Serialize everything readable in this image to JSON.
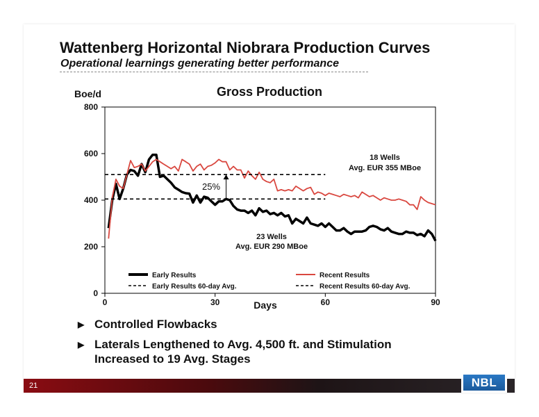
{
  "slide": {
    "title": "Wattenberg Horizontal Niobrara Production Curves",
    "subtitle": "Operational learnings generating better performance",
    "page_number": "21",
    "logo_text": "NBL"
  },
  "bullets": [
    "Controlled Flowbacks",
    "Laterals Lengthened to Avg. 4,500 ft. and Stimulation Increased to 19 Avg. Stages"
  ],
  "chart_data": {
    "type": "line",
    "title": "Gross Production",
    "ylabel": "Boe/d",
    "xlabel": "Days",
    "xlim": [
      0,
      90
    ],
    "ylim": [
      0,
      800
    ],
    "xticks": [
      "0",
      "30",
      "60",
      "90"
    ],
    "yticks": [
      "0",
      "200",
      "400",
      "600",
      "800"
    ],
    "grid": false,
    "legend_position": "bottom",
    "series": [
      {
        "name": "Early Results",
        "color": "#000000",
        "style": "solid",
        "x": [
          1,
          2,
          3,
          4,
          5,
          6,
          7,
          8,
          9,
          10,
          11,
          12,
          13,
          14,
          15,
          16,
          17,
          18,
          19,
          20,
          21,
          22,
          23,
          24,
          25,
          26,
          27,
          28,
          29,
          30,
          31,
          32,
          33,
          34,
          35,
          36,
          37,
          38,
          39,
          40,
          41,
          42,
          43,
          44,
          45,
          46,
          47,
          48,
          49,
          50,
          51,
          52,
          53,
          54,
          55,
          56,
          57,
          58,
          59,
          60,
          61,
          62,
          63,
          64,
          65,
          66,
          67,
          68,
          69,
          70,
          71,
          72,
          73,
          74,
          75,
          76,
          77,
          78,
          79,
          80,
          81,
          82,
          83,
          84,
          85,
          86,
          87,
          88,
          89,
          90
        ],
        "values": [
          280,
          400,
          470,
          405,
          450,
          510,
          530,
          525,
          505,
          555,
          520,
          575,
          595,
          595,
          500,
          505,
          490,
          475,
          455,
          445,
          435,
          430,
          428,
          390,
          420,
          390,
          415,
          410,
          395,
          380,
          395,
          395,
          405,
          400,
          375,
          360,
          355,
          355,
          345,
          355,
          335,
          365,
          350,
          355,
          340,
          345,
          335,
          345,
          330,
          335,
          300,
          320,
          310,
          300,
          325,
          300,
          295,
          290,
          300,
          285,
          300,
          285,
          270,
          270,
          280,
          265,
          255,
          265,
          265,
          265,
          270,
          285,
          290,
          285,
          275,
          270,
          280,
          265,
          260,
          255,
          255,
          265,
          260,
          260,
          250,
          255,
          245,
          270,
          255,
          225
        ]
      },
      {
        "name": "Recent Results",
        "color": "#d9473f",
        "style": "solid",
        "x": [
          1,
          2,
          3,
          4,
          5,
          6,
          7,
          8,
          9,
          10,
          11,
          12,
          13,
          14,
          15,
          16,
          17,
          18,
          19,
          20,
          21,
          22,
          23,
          24,
          25,
          26,
          27,
          28,
          29,
          30,
          31,
          32,
          33,
          34,
          35,
          36,
          37,
          38,
          39,
          40,
          41,
          42,
          43,
          44,
          45,
          46,
          47,
          48,
          49,
          50,
          51,
          52,
          53,
          54,
          55,
          56,
          57,
          58,
          59,
          60,
          61,
          62,
          63,
          64,
          65,
          66,
          67,
          68,
          69,
          70,
          71,
          72,
          73,
          74,
          75,
          76,
          77,
          78,
          79,
          80,
          81,
          82,
          83,
          84,
          85,
          86,
          87,
          88,
          89,
          90
        ],
        "values": [
          235,
          410,
          490,
          460,
          450,
          510,
          570,
          540,
          545,
          555,
          525,
          545,
          565,
          575,
          565,
          555,
          545,
          535,
          545,
          525,
          575,
          565,
          555,
          525,
          545,
          555,
          530,
          545,
          550,
          560,
          575,
          565,
          565,
          530,
          545,
          530,
          530,
          495,
          525,
          505,
          490,
          520,
          490,
          480,
          475,
          490,
          440,
          445,
          440,
          445,
          440,
          460,
          450,
          440,
          450,
          455,
          425,
          435,
          430,
          420,
          430,
          425,
          420,
          415,
          425,
          420,
          415,
          420,
          410,
          435,
          425,
          415,
          420,
          410,
          400,
          410,
          405,
          400,
          400,
          405,
          400,
          395,
          380,
          380,
          360,
          415,
          400,
          390,
          385,
          380
        ]
      },
      {
        "name": "Early Results 60-day Avg.",
        "color": "#000000",
        "style": "dashed",
        "x": [
          0,
          60
        ],
        "values": [
          405,
          405
        ]
      },
      {
        "name": "Recent Results 60-day Avg.",
        "color": "#000000",
        "style": "dashed",
        "x": [
          0,
          60
        ],
        "values": [
          510,
          510
        ]
      }
    ],
    "annotations": [
      {
        "text": "25%",
        "arrow_x": 33,
        "arrow_y_from": 405,
        "arrow_y_to": 510
      },
      {
        "line1": "18 Wells",
        "line2": "Avg. EUR 355 MBoe"
      },
      {
        "line1": "23 Wells",
        "line2": "Avg. EUR 290 MBoe"
      }
    ]
  }
}
